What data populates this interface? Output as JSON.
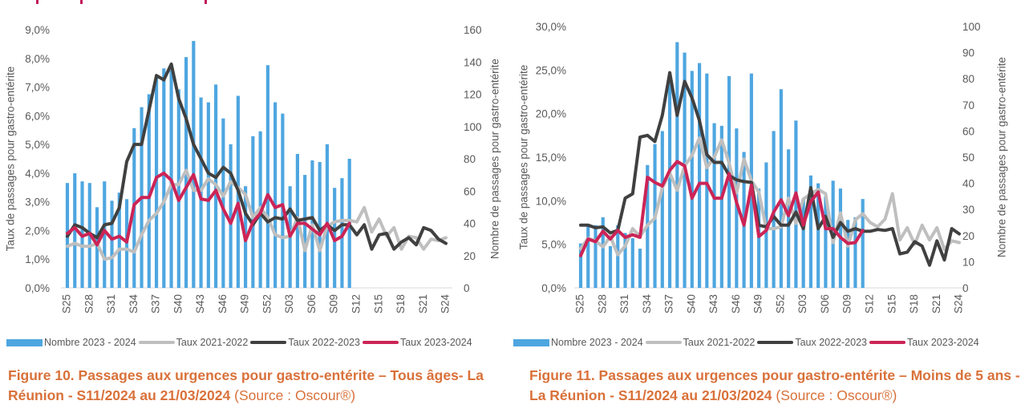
{
  "weeks": [
    "S25",
    "S26",
    "S27",
    "S28",
    "S29",
    "S30",
    "S31",
    "S32",
    "S33",
    "S34",
    "S35",
    "S36",
    "S37",
    "S38",
    "S39",
    "S40",
    "S41",
    "S42",
    "S43",
    "S44",
    "S45",
    "S46",
    "S47",
    "S48",
    "S49",
    "S50",
    "S51",
    "S52",
    "S01",
    "S02",
    "S03",
    "S04",
    "S05",
    "S06",
    "S07",
    "S08",
    "S09",
    "S10",
    "S11",
    "S12",
    "S13",
    "S14",
    "S15",
    "S16",
    "S17",
    "S18",
    "S19",
    "S20",
    "S21",
    "S22",
    "S23",
    "S24"
  ],
  "colors": {
    "bars": "#4ea6e0",
    "taux_2021_2022": "#bfbfbf",
    "taux_2022_2023": "#404040",
    "taux_2023_2024": "#cc2456",
    "caption": "#d9713a",
    "axis_text": "#595959"
  },
  "chart_data": [
    {
      "type": "bar",
      "combo": "bar+line",
      "title": "Figure 10. Passages aux urgences pour gastro-entérite – Tous âges- La Réunion - S11/2024 au 21/03/2024",
      "ylabel_left": "Taux de passages pour gastro-entérite",
      "ylabel_right": "Nombre de passages pour gastro-entérite",
      "xlabel": "",
      "ylim_left": [
        0,
        9
      ],
      "ylim_right": [
        0,
        160
      ],
      "yticks_left": [
        "0,0%",
        "1,0%",
        "2,0%",
        "3,0%",
        "4,0%",
        "5,0%",
        "6,0%",
        "7,0%",
        "8,0%",
        "9,0%"
      ],
      "yticks_right": [
        "0",
        "20",
        "40",
        "60",
        "80",
        "100",
        "120",
        "140",
        "160"
      ],
      "xticks": [
        "S25",
        "S28",
        "S31",
        "S34",
        "S37",
        "S40",
        "S43",
        "S46",
        "S49",
        "S52",
        "S03",
        "S06",
        "S09",
        "S12",
        "S15",
        "S18",
        "S21",
        "S24"
      ],
      "grid": false,
      "legend_position": "bottom",
      "series": [
        {
          "name": "Nombre 2023 - 2024",
          "kind": "bar",
          "axis": "right",
          "values": [
            65,
            71,
            66,
            65,
            50,
            66,
            54,
            59,
            55,
            99,
            112,
            120,
            132,
            136,
            135,
            123,
            143,
            153,
            118,
            115,
            126,
            105,
            89,
            119,
            63,
            94,
            97,
            138,
            115,
            108,
            63,
            83,
            70,
            79,
            78,
            89,
            62,
            68,
            80
          ]
        },
        {
          "name": "Taux 2021-2022",
          "kind": "line",
          "axis": "left",
          "values": [
            1.45,
            1.55,
            1.45,
            1.45,
            1.55,
            1.0,
            1.05,
            1.35,
            1.35,
            1.25,
            1.85,
            2.35,
            2.6,
            3.0,
            3.6,
            3.6,
            4.1,
            3.4,
            3.4,
            3.8,
            3.6,
            3.2,
            3.7,
            3.5,
            3.25,
            2.45,
            2.8,
            2.45,
            1.85,
            1.75,
            1.8,
            2.45,
            1.3,
            2.2,
            1.3,
            2.15,
            2.3,
            2.35,
            2.35,
            2.3,
            2.8,
            1.95,
            2.4,
            1.8,
            2.1,
            1.35,
            1.8,
            1.75,
            1.35,
            1.7,
            1.65,
            1.75
          ]
        },
        {
          "name": "Taux 2022-2023",
          "kind": "line",
          "axis": "left",
          "values": [
            1.8,
            2.2,
            2.1,
            1.9,
            1.75,
            2.2,
            2.25,
            2.8,
            4.4,
            5.0,
            5.0,
            6.2,
            7.4,
            7.25,
            7.8,
            6.6,
            5.9,
            5.0,
            4.5,
            4.0,
            3.85,
            4.2,
            4.0,
            3.4,
            2.6,
            2.2,
            2.6,
            2.3,
            2.45,
            2.4,
            2.75,
            2.35,
            2.4,
            2.45,
            2.0,
            2.2,
            2.0,
            2.2,
            2.2,
            1.85,
            2.2,
            1.35,
            1.85,
            1.9,
            1.35,
            1.6,
            1.75,
            1.5,
            2.1,
            2.0,
            1.7,
            1.55
          ]
        },
        {
          "name": "Taux 2023-2024",
          "kind": "line",
          "axis": "left",
          "values": [
            1.9,
            2.1,
            1.8,
            1.9,
            1.5,
            2.0,
            1.7,
            1.8,
            1.6,
            2.9,
            3.15,
            3.15,
            3.85,
            4.0,
            3.75,
            3.05,
            3.5,
            3.95,
            3.1,
            3.05,
            3.4,
            2.75,
            2.25,
            2.95,
            1.65,
            2.3,
            2.6,
            3.25,
            2.8,
            2.9,
            1.8,
            2.25,
            2.25,
            2.05,
            1.85,
            2.25,
            1.65,
            1.8,
            2.25
          ]
        }
      ]
    },
    {
      "type": "bar",
      "combo": "bar+line",
      "title": "Figure 11. Passages aux urgences pour gastro-entérite – Moins de 5 ans - La Réunion - S11/2024 au 21/03/2024",
      "ylabel_left": "Taux de passages pour gastro-entérite",
      "ylabel_right": "Nombre de passages pour gastro-entérite",
      "xlabel": "",
      "ylim_left": [
        0,
        30
      ],
      "ylim_right": [
        0,
        100
      ],
      "yticks_left": [
        "0,0%",
        "5,0%",
        "10,0%",
        "15,0%",
        "20,0%",
        "25,0%",
        "30,0%"
      ],
      "yticks_right": [
        "0",
        "10",
        "20",
        "30",
        "40",
        "50",
        "60",
        "70",
        "80",
        "90",
        "100"
      ],
      "xticks": [
        "S25",
        "S28",
        "S31",
        "S34",
        "S37",
        "S40",
        "S43",
        "S46",
        "S49",
        "S52",
        "S03",
        "S06",
        "S09",
        "S12",
        "S15",
        "S18",
        "S21",
        "S24"
      ],
      "grid": false,
      "legend_position": "bottom",
      "series": [
        {
          "name": "Nombre 2023 - 2024",
          "kind": "bar",
          "axis": "right",
          "values": [
            17,
            24,
            24,
            27,
            16,
            24,
            21,
            19,
            15,
            47,
            55,
            60,
            80,
            94,
            90,
            83,
            86,
            82,
            63,
            62,
            81,
            61,
            52,
            82,
            38,
            48,
            60,
            76,
            53,
            64,
            34,
            43,
            40,
            35,
            41,
            38,
            26,
            27,
            34
          ]
        },
        {
          "name": "Taux 2021-2022",
          "kind": "line",
          "axis": "left",
          "values": [
            4.5,
            5.7,
            5.4,
            4.7,
            5.9,
            3.8,
            4.8,
            6.8,
            5.9,
            7.2,
            8.0,
            11.5,
            13.2,
            11.2,
            14.0,
            15.2,
            17.2,
            13.8,
            15.0,
            17.0,
            14.3,
            10.9,
            14.8,
            12.3,
            11.0,
            6.8,
            6.8,
            7.0,
            10.3,
            7.4,
            10.2,
            10.8,
            11.3,
            10.8,
            5.2,
            8.6,
            4.8,
            7.8,
            8.5,
            7.5,
            7.0,
            7.9,
            10.8,
            5.5,
            6.9,
            5.0,
            7.2,
            5.5,
            6.9,
            4.4,
            5.4,
            5.2
          ]
        },
        {
          "name": "Taux 2022-2023",
          "kind": "line",
          "axis": "left",
          "values": [
            7.2,
            7.2,
            6.9,
            7.0,
            6.3,
            6.6,
            10.3,
            10.8,
            17.3,
            17.5,
            16.8,
            19.8,
            24.7,
            19.8,
            23.7,
            21.8,
            19.2,
            15.3,
            14.4,
            14.4,
            12.9,
            12.4,
            12.2,
            12.1,
            7.2,
            7.0,
            8.2,
            7.2,
            7.2,
            8.7,
            6.8,
            11.5,
            6.8,
            8.2,
            5.8,
            7.5,
            6.5,
            6.8,
            6.5,
            6.5,
            6.7,
            6.6,
            6.8,
            3.9,
            4.1,
            5.3,
            4.8,
            2.6,
            5.4,
            3.2,
            6.8,
            6.2
          ]
        },
        {
          "name": "Taux 2023-2024",
          "kind": "line",
          "axis": "left",
          "values": [
            3.7,
            5.6,
            5.3,
            6.5,
            5.6,
            6.6,
            5.8,
            6.1,
            5.8,
            12.7,
            12.1,
            11.7,
            13.5,
            14.5,
            14.0,
            10.3,
            12.0,
            12.0,
            10.3,
            10.3,
            13.1,
            9.8,
            7.2,
            11.8,
            5.9,
            6.6,
            8.7,
            10.1,
            8.3,
            10.9,
            7.2,
            9.9,
            11.0,
            6.8,
            6.8,
            5.8,
            5.1,
            5.2,
            6.6
          ]
        }
      ]
    }
  ],
  "legends": [
    {
      "items": [
        "Nombre 2023 - 2024",
        "Taux 2021-2022",
        "Taux 2022-2023",
        "Taux 2023-2024"
      ]
    },
    {
      "items": [
        "Nombre 2023 - 2024",
        "Taux 2021-2022",
        "Taux 2022-2023",
        "Taux 2023-2024"
      ]
    }
  ],
  "captions": [
    {
      "bold": "Figure 10. Passages aux urgences pour gastro-entérite – Tous âges- La Réunion - S11/2024 au 21/03/2024",
      "source": " (Source : Oscour®)"
    },
    {
      "bold": "Figure 11. Passages aux urgences pour gastro-entérite  – Moins de 5 ans - La Réunion - S11/2024 au 21/03/2024",
      "source": " (Source : Oscour®)"
    }
  ]
}
